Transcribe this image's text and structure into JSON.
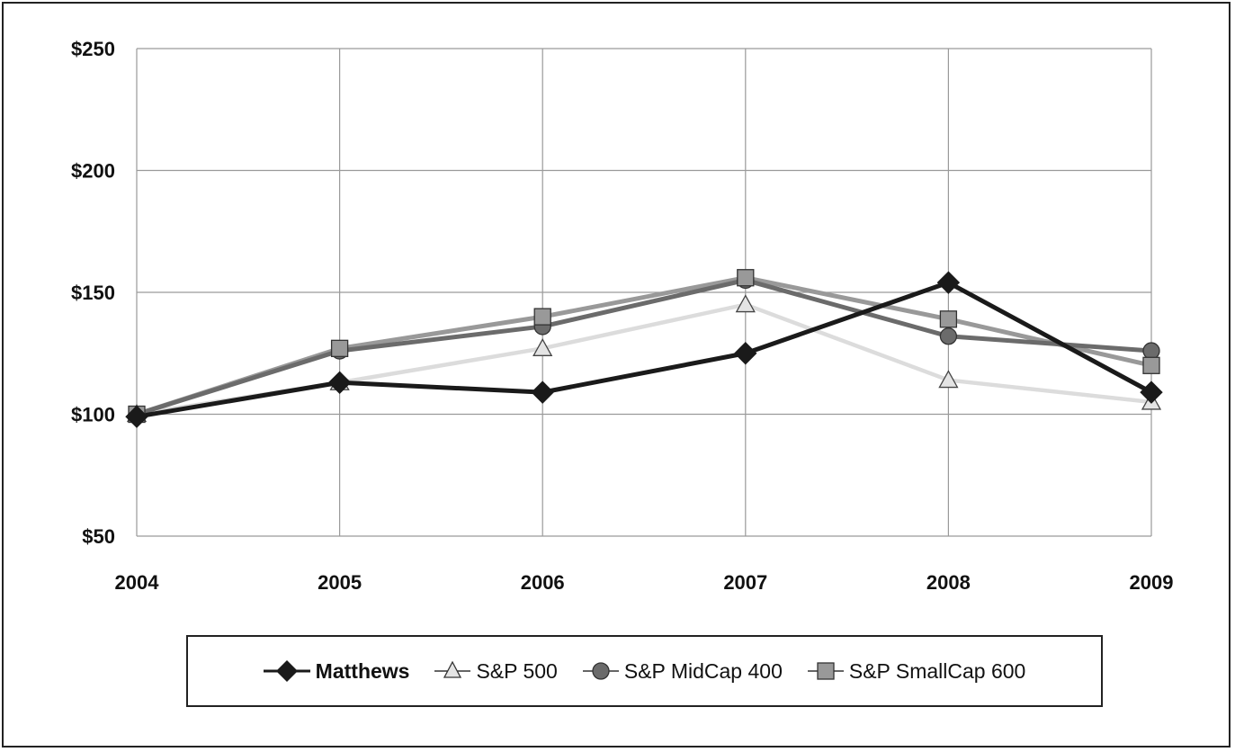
{
  "chart_data": {
    "type": "line",
    "x": [
      "2004",
      "2005",
      "2006",
      "2007",
      "2008",
      "2009"
    ],
    "ylim": [
      50,
      250
    ],
    "yticks": [
      50,
      100,
      150,
      200,
      250
    ],
    "ytick_labels": [
      "$50",
      "$100",
      "$150",
      "$200",
      "$250"
    ],
    "grid": true,
    "legend_position": "bottom",
    "series": [
      {
        "name": "Matthews",
        "marker": "diamond",
        "color": "#1a1a1a",
        "values": [
          99,
          113,
          109,
          125,
          154,
          109
        ]
      },
      {
        "name": "S&P 500",
        "marker": "triangle",
        "color": "#dcdcdc",
        "values": [
          100,
          113,
          127,
          145,
          114,
          105
        ]
      },
      {
        "name": "S&P MidCap 400",
        "marker": "circle",
        "color": "#6b6b6b",
        "values": [
          100,
          126,
          136,
          155,
          132,
          126
        ]
      },
      {
        "name": "S&P SmallCap 600",
        "marker": "square",
        "color": "#999999",
        "values": [
          100,
          127,
          140,
          156,
          139,
          120
        ]
      }
    ]
  }
}
